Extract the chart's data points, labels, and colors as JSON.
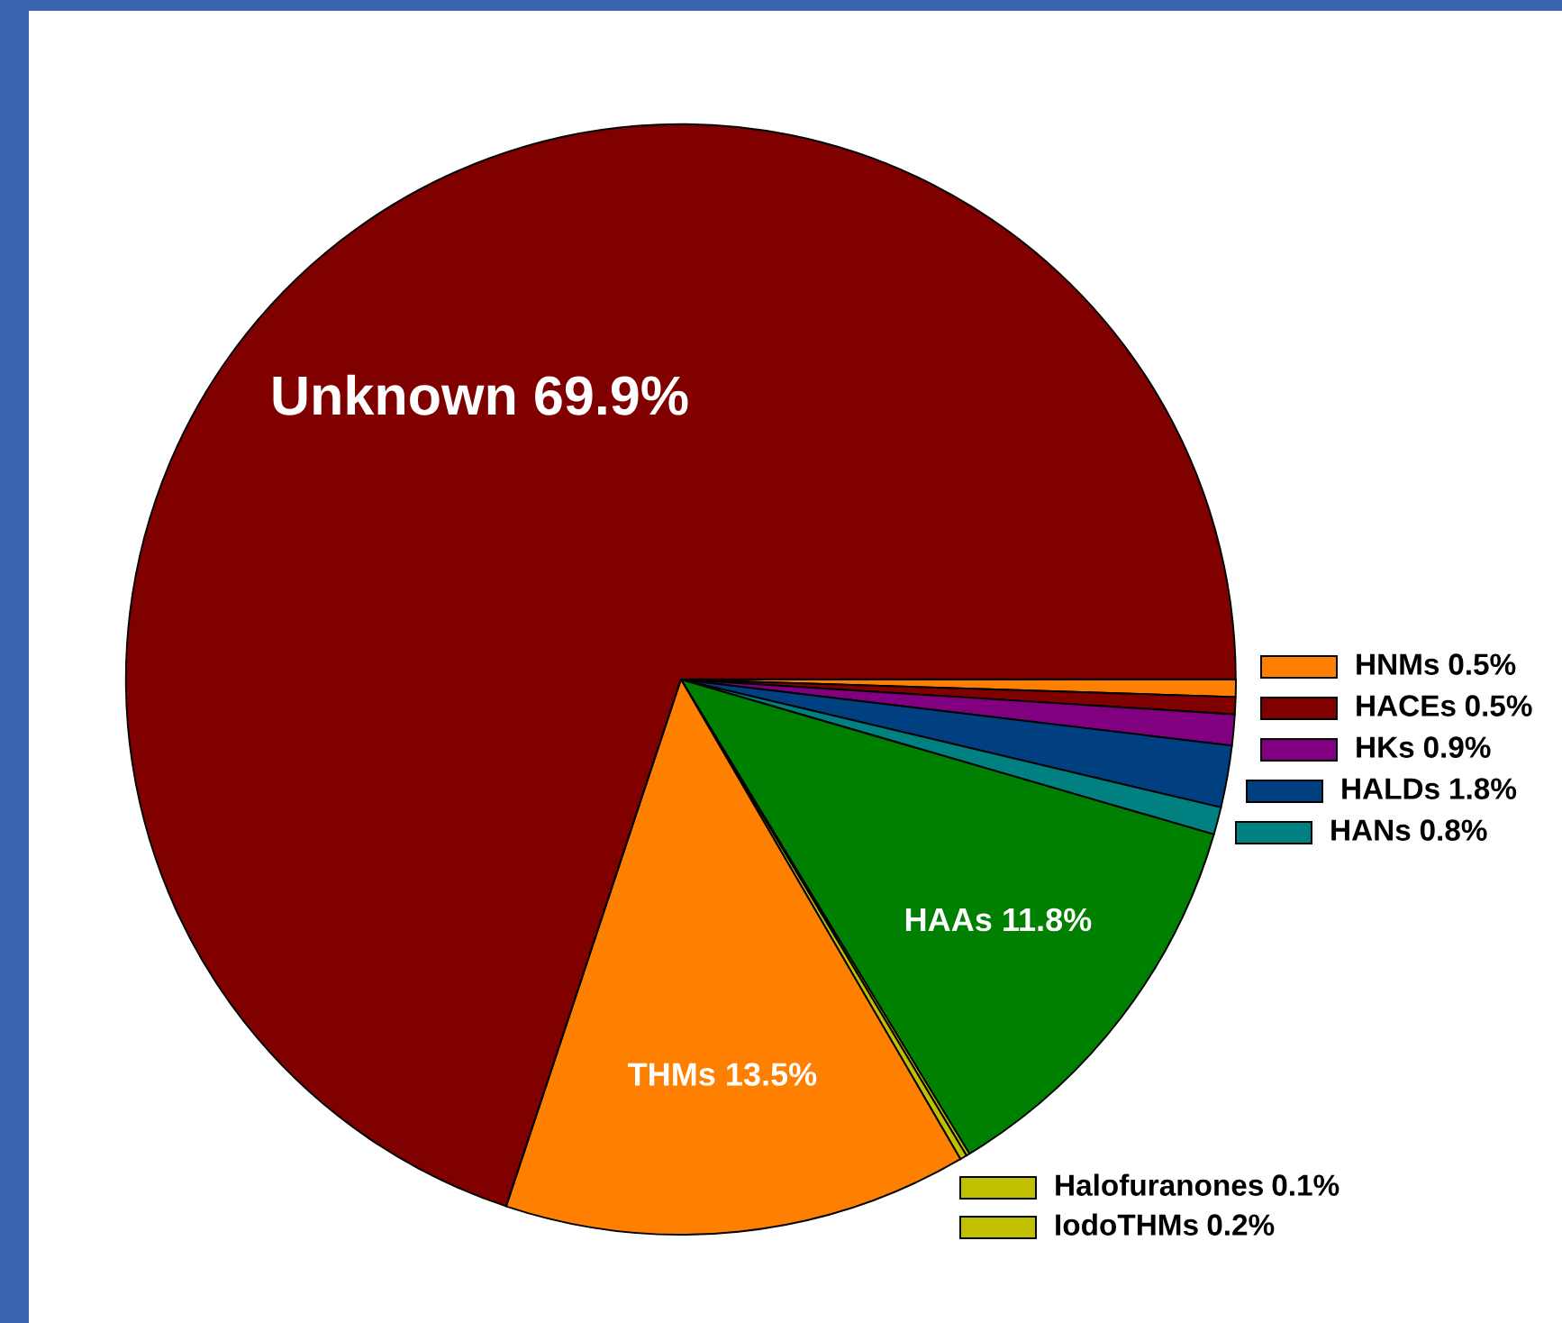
{
  "chart_data": {
    "type": "pie",
    "categories": [
      "HNMs",
      "HACEs",
      "HKs",
      "HALDs",
      "HANs",
      "HAAs",
      "Halofuranones",
      "IodoTHMs",
      "THMs",
      "Unknown"
    ],
    "values": [
      0.5,
      0.5,
      0.9,
      1.8,
      0.8,
      11.8,
      0.1,
      0.2,
      13.5,
      69.9
    ],
    "colors": [
      "#ff8000",
      "#800000",
      "#800080",
      "#004080",
      "#008080",
      "#008000",
      "#c0c000",
      "#c0c000",
      "#ff8000",
      "#800000"
    ],
    "value_labels": [
      "0.5%",
      "0.5%",
      "0.9%",
      "1.8%",
      "0.8%",
      "11.8%",
      "0.1%",
      "0.2%",
      "13.5%",
      "69.9%"
    ],
    "legend": "right"
  }
}
